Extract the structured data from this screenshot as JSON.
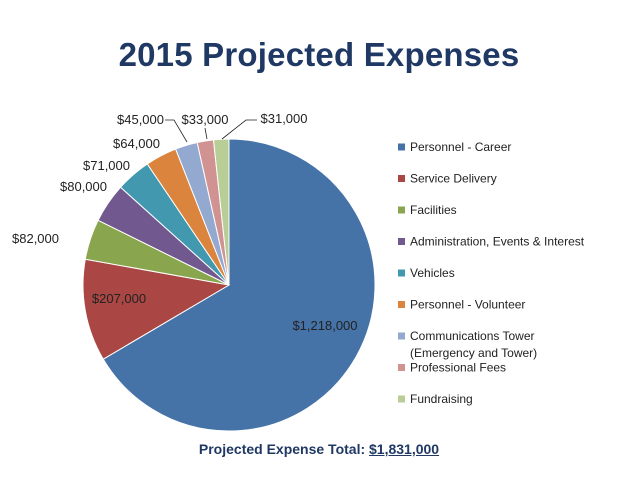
{
  "title": "2015 Projected Expenses",
  "total": {
    "label": "Projected Expense Total:",
    "value": "$1,831,000"
  },
  "chart_data": {
    "type": "pie",
    "title": "2015 Projected Expenses",
    "legend_position": "right",
    "slices": [
      {
        "name": "Personnel - Career",
        "value": 1218000,
        "label": "$1,218,000",
        "color": "#4572a7"
      },
      {
        "name": "Service Delivery",
        "value": 207000,
        "label": "$207,000",
        "color": "#aa4643"
      },
      {
        "name": "Facilities",
        "value": 82000,
        "label": "$82,000",
        "color": "#89a54e"
      },
      {
        "name": "Administration, Events & Interest",
        "value": 80000,
        "label": "$80,000",
        "color": "#71588f"
      },
      {
        "name": "Vehicles",
        "value": 71000,
        "label": "$71,000",
        "color": "#4198af"
      },
      {
        "name": "Personnel - Volunteer",
        "value": 64000,
        "label": "$64,000",
        "color": "#db843d"
      },
      {
        "name": "Communications Tower (Emergency and Tower)",
        "value": 45000,
        "label": "$45,000",
        "color": "#93a9cf"
      },
      {
        "name": "Professional Fees",
        "value": 33000,
        "label": "$33,000",
        "color": "#d19392"
      },
      {
        "name": "Fundraising",
        "value": 31000,
        "label": "$31,000",
        "color": "#b9cd96"
      }
    ]
  }
}
